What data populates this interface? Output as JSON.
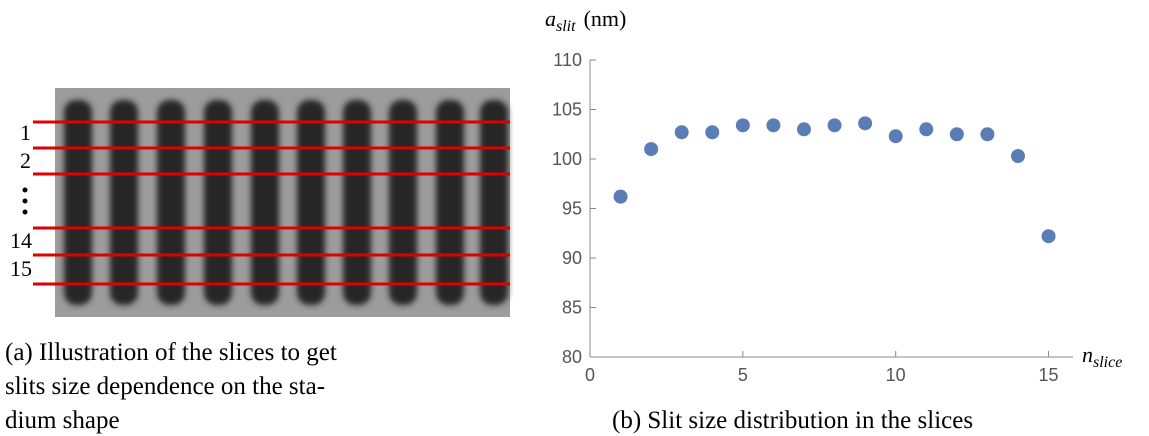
{
  "panel_a": {
    "slice_labels": [
      "1",
      "2",
      "14",
      "15"
    ],
    "caption_lines": [
      "(a) Illustration of the slices to get",
      "slits size dependence on the sta-",
      "dium shape"
    ]
  },
  "chart_data": {
    "type": "scatter",
    "ylabel": {
      "symbol": "a",
      "subscript": "slit",
      "unit": "(nm)"
    },
    "xlabel": {
      "symbol": "n",
      "subscript": "slice"
    },
    "caption": "(b) Slit size distribution in the slices",
    "x": [
      1,
      2,
      3,
      4,
      5,
      6,
      7,
      8,
      9,
      10,
      11,
      12,
      13,
      14,
      15
    ],
    "values": [
      96.2,
      101.0,
      102.7,
      102.7,
      103.4,
      103.4,
      103.0,
      103.4,
      103.6,
      102.3,
      103.0,
      102.5,
      102.5,
      100.3,
      92.2
    ],
    "color": "#5b7db6",
    "xlim": [
      0,
      15.8
    ],
    "ylim": [
      80,
      110
    ],
    "xticks": [
      0,
      5,
      10,
      15
    ],
    "yticks": [
      80,
      85,
      90,
      95,
      100,
      105,
      110
    ]
  }
}
